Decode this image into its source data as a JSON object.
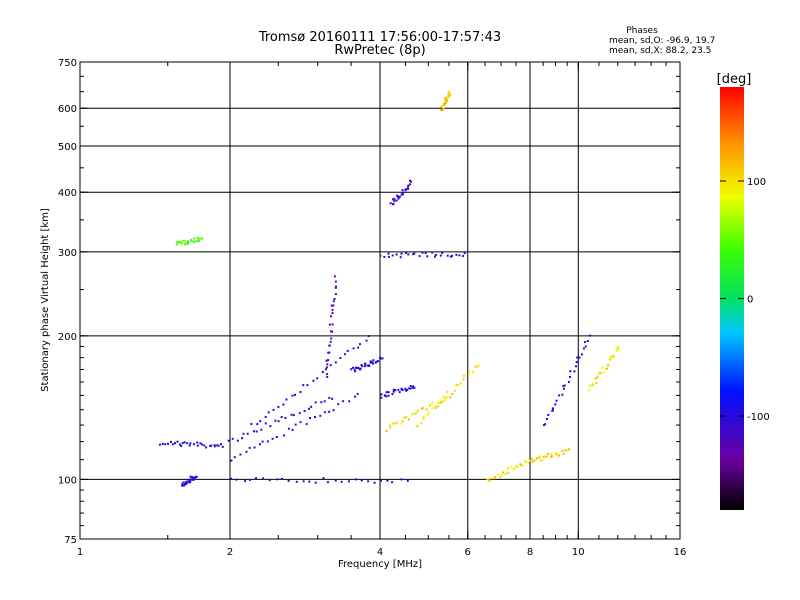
{
  "header": {
    "title": "Tromsø 20160111 17:56:00-17:57:43",
    "subtitle": "RwPretec (8p)",
    "phases_label": "Phases",
    "phases_o": "mean, sd,O: -96.9, 19.7",
    "phases_x": "mean, sd,X:  88.2, 23.5"
  },
  "colorbar": {
    "unit_label": "[deg]",
    "ticks": [
      {
        "label": "100",
        "value": 100
      },
      {
        "label": "0",
        "value": 0
      },
      {
        "label": "-100",
        "value": -100
      }
    ],
    "range": [
      -180,
      180
    ]
  },
  "chart_data": {
    "type": "scatter",
    "xlabel": "Frequency [MHz]",
    "ylabel": "Stationary phase Virtual Height [km]",
    "xscale": "log",
    "yscale": "log",
    "xlim": [
      1,
      16
    ],
    "ylim": [
      75,
      750
    ],
    "xticks": [
      {
        "label": "1",
        "value": 1
      },
      {
        "label": "2",
        "value": 2
      },
      {
        "label": "4",
        "value": 4
      },
      {
        "label": "6",
        "value": 6
      },
      {
        "label": "8",
        "value": 8
      },
      {
        "label": "10",
        "value": 10
      },
      {
        "label": "16",
        "value": 16
      }
    ],
    "yticks": [
      {
        "label": "75",
        "value": 75
      },
      {
        "label": "100",
        "value": 100
      },
      {
        "label": "200",
        "value": 200
      },
      {
        "label": "300",
        "value": 300
      },
      {
        "label": "400",
        "value": 400
      },
      {
        "label": "500",
        "value": 500
      },
      {
        "label": "600",
        "value": 600
      },
      {
        "label": "750",
        "value": 750
      }
    ],
    "grid_x": [
      2,
      4,
      6,
      8,
      10
    ],
    "grid_y": [
      100,
      200,
      300,
      400,
      500,
      600
    ],
    "grid": true,
    "color_encoding": "phase [deg]",
    "traces": [
      {
        "x": [
          1.45,
          1.9
        ],
        "y": [
          120,
          118
        ],
        "phase": -100
      },
      {
        "x": [
          1.9,
          3.2
        ],
        "y": [
          118,
          150
        ],
        "phase": -105
      },
      {
        "x": [
          2.0,
          3.6
        ],
        "y": [
          111,
          150
        ],
        "phase": -110
      },
      {
        "x": [
          2.2,
          3.8
        ],
        "y": [
          130,
          200
        ],
        "phase": -100
      },
      {
        "x": [
          3.1,
          3.25
        ],
        "y": [
          165,
          265
        ],
        "phase": -120
      },
      {
        "x": [
          1.6,
          1.7
        ],
        "y": [
          98,
          102
        ],
        "phase": -105
      },
      {
        "x": [
          2.0,
          4.5
        ],
        "y": [
          100,
          100
        ],
        "phase": -100
      },
      {
        "x": [
          3.5,
          4.0
        ],
        "y": [
          170,
          180
        ],
        "phase": -95
      },
      {
        "x": [
          4.0,
          4.7
        ],
        "y": [
          150,
          158
        ],
        "phase": -100
      },
      {
        "x": [
          4.1,
          5.5
        ],
        "y": [
          128,
          150
        ],
        "phase": 105
      },
      {
        "x": [
          4.7,
          6.3
        ],
        "y": [
          130,
          175
        ],
        "phase": 100
      },
      {
        "x": [
          4.0,
          5.9
        ],
        "y": [
          297,
          297
        ],
        "phase": -110
      },
      {
        "x": [
          4.2,
          4.6
        ],
        "y": [
          380,
          420
        ],
        "phase": -110
      },
      {
        "x": [
          5.3,
          5.5
        ],
        "y": [
          600,
          650
        ],
        "phase": 110
      },
      {
        "x": [
          6.5,
          8.0
        ],
        "y": [
          100,
          110
        ],
        "phase": 100
      },
      {
        "x": [
          8.0,
          9.5
        ],
        "y": [
          110,
          115
        ],
        "phase": 105
      },
      {
        "x": [
          8.5,
          10.5
        ],
        "y": [
          130,
          200
        ],
        "phase": -100
      },
      {
        "x": [
          10.5,
          12.0
        ],
        "y": [
          155,
          190
        ],
        "phase": 100
      },
      {
        "x": [
          1.55,
          1.75
        ],
        "y": [
          312,
          322
        ],
        "phase": 40
      }
    ]
  }
}
